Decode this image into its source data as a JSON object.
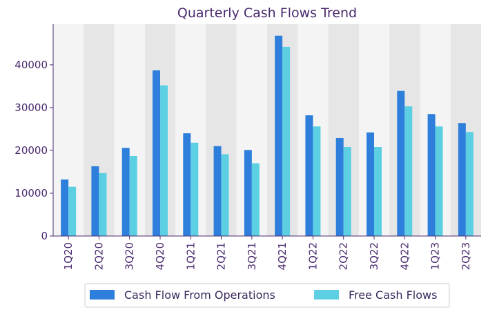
{
  "chart_data": {
    "type": "bar",
    "title": "Quarterly Cash Flows Trend",
    "xlabel": "",
    "ylabel": "",
    "categories": [
      "1Q20",
      "2Q20",
      "3Q20",
      "4Q20",
      "1Q21",
      "2Q21",
      "3Q21",
      "4Q21",
      "1Q22",
      "2Q22",
      "3Q22",
      "4Q22",
      "1Q23",
      "2Q23"
    ],
    "series": [
      {
        "name": "Cash Flow From Operations",
        "color": "#2e7fdc",
        "values": [
          13200,
          16300,
          20600,
          38700,
          24000,
          21000,
          20100,
          46800,
          28200,
          22900,
          24200,
          33900,
          28500,
          26400
        ]
      },
      {
        "name": "Free Cash Flows",
        "color": "#5ccfe3",
        "values": [
          11500,
          14700,
          18700,
          35200,
          21800,
          19100,
          17000,
          44200,
          25600,
          20800,
          20800,
          30300,
          25600,
          24300
        ]
      }
    ],
    "ylim": [
      0,
      49500
    ],
    "yticks": [
      0,
      10000,
      20000,
      30000,
      40000
    ],
    "grid": false,
    "background_bands": [
      "#f4f4f4",
      "#e6e6e6"
    ],
    "legend_position": "bottom"
  }
}
